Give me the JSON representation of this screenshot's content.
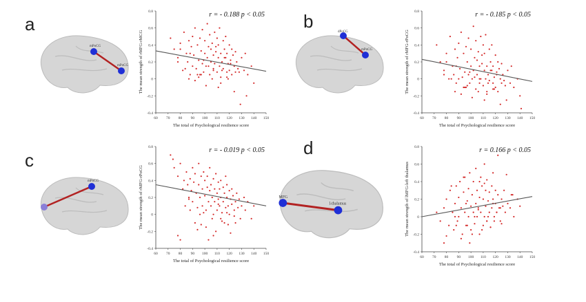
{
  "colors": {
    "point": "#d42a2a",
    "fit": "#555555",
    "node": "#1f2fd6",
    "edge": "#b22222",
    "brain": "#d6d6d6"
  },
  "panels": [
    {
      "letter": "a",
      "node1": "mPoCG",
      "node2": "mPoCG"
    },
    {
      "letter": "b",
      "node1": "dPoCG",
      "node2": "mPoCG"
    },
    {
      "letter": "c",
      "node1": "",
      "node2": "mPoCG"
    },
    {
      "letter": "d",
      "node1": "MFG",
      "node2": "l-thalamus"
    }
  ],
  "chart_data": [
    {
      "type": "scatter",
      "annotation": {
        "r": "r = - 0.188",
        "p": "p < 0.05"
      },
      "xlabel": "The total of Psychological resilience score",
      "ylabel": "The mean strength of rMFG-rMCG",
      "xlim": [
        60,
        150
      ],
      "ylim": [
        -0.4,
        0.8
      ],
      "xticks": [
        60,
        70,
        80,
        90,
        100,
        110,
        120,
        130,
        140,
        150
      ],
      "yticks": [
        -0.4,
        -0.2,
        0,
        0.2,
        0.4,
        0.6,
        0.8
      ],
      "fit": {
        "x": [
          60,
          150
        ],
        "y": [
          0.33,
          0.09
        ]
      },
      "grid": false,
      "x": [
        72,
        75,
        78,
        80,
        82,
        83,
        85,
        86,
        87,
        88,
        89,
        90,
        90,
        91,
        92,
        93,
        94,
        95,
        95,
        96,
        97,
        98,
        98,
        99,
        100,
        100,
        101,
        102,
        102,
        103,
        104,
        104,
        105,
        105,
        106,
        107,
        107,
        108,
        108,
        109,
        110,
        110,
        111,
        111,
        112,
        112,
        113,
        113,
        114,
        115,
        115,
        116,
        117,
        117,
        118,
        118,
        119,
        120,
        120,
        121,
        122,
        122,
        123,
        124,
        125,
        126,
        127,
        128,
        130,
        132,
        133,
        135,
        138,
        140,
        78,
        84,
        92,
        96,
        101,
        106,
        109,
        114,
        119,
        124,
        88,
        94,
        99,
        103,
        111,
        116,
        121,
        129,
        80,
        87,
        97,
        107,
        113,
        118,
        125,
        134
      ],
      "y": [
        0.48,
        0.35,
        0.25,
        0.42,
        0.1,
        0.55,
        0.3,
        0.2,
        0.45,
        0.05,
        0.38,
        0.15,
        0.5,
        0.28,
        0.6,
        0.12,
        0.4,
        0.22,
        0.02,
        0.48,
        0.33,
        0.18,
        0.58,
        0.08,
        0.3,
        0.45,
        0.15,
        0.65,
        0.25,
        0.38,
        0.05,
        0.52,
        0.2,
        0.35,
        0.42,
        0.1,
        0.28,
        0.55,
        0.18,
        0.32,
        0.48,
        0.08,
        0.25,
        0.4,
        0.15,
        0.6,
        0.3,
        0.02,
        0.2,
        0.45,
        0.12,
        0.35,
        0.25,
        0.5,
        0.08,
        0.3,
        0.18,
        0.4,
        0.1,
        0.22,
        0.35,
        0.05,
        0.28,
        0.15,
        0.32,
        0.2,
        0.12,
        0.08,
        0.25,
        0.1,
        0.3,
        0.05,
        0.15,
        -0.05,
        0.2,
        0.12,
        -0.02,
        0.05,
        -0.08,
        0.0,
        0.38,
        0.1,
        0.0,
        -0.15,
        0.3,
        0.05,
        0.22,
        0.15,
        -0.1,
        0.25,
        0.18,
        -0.3,
        0.35,
        0.0,
        0.05,
        0.12,
        -0.05,
        0.02,
        0.08,
        -0.2
      ]
    },
    {
      "type": "scatter",
      "annotation": {
        "r": "r = - 0.185",
        "p": "p < 0.05"
      },
      "xlabel": "The total of Psychological resilience score",
      "ylabel": "The mean strength of rMFG-rPoCG",
      "xlim": [
        60,
        150
      ],
      "ylim": [
        -0.4,
        0.8
      ],
      "xticks": [
        60,
        70,
        80,
        90,
        100,
        110,
        120,
        130,
        140,
        150
      ],
      "yticks": [
        -0.4,
        -0.2,
        0,
        0.2,
        0.4,
        0.6,
        0.8
      ],
      "fit": {
        "x": [
          60,
          150
        ],
        "y": [
          0.23,
          -0.03
        ]
      },
      "grid": false,
      "x": [
        72,
        75,
        78,
        80,
        82,
        83,
        85,
        86,
        87,
        88,
        89,
        90,
        90,
        91,
        92,
        93,
        94,
        95,
        95,
        96,
        97,
        98,
        98,
        99,
        100,
        100,
        101,
        102,
        102,
        103,
        104,
        104,
        105,
        105,
        106,
        107,
        107,
        108,
        108,
        109,
        110,
        110,
        111,
        111,
        112,
        112,
        113,
        113,
        114,
        115,
        115,
        116,
        117,
        117,
        118,
        118,
        119,
        120,
        120,
        121,
        122,
        122,
        123,
        124,
        125,
        126,
        127,
        128,
        130,
        132,
        133,
        135,
        138,
        140,
        78,
        84,
        92,
        96,
        101,
        106,
        109,
        114,
        119,
        124,
        88,
        94,
        99,
        103,
        111,
        116,
        121,
        129,
        80,
        87,
        97,
        107,
        113,
        118,
        125,
        141
      ],
      "y": [
        0.4,
        0.2,
        0.1,
        0.3,
        0.0,
        0.5,
        0.15,
        0.05,
        0.35,
        -0.05,
        0.25,
        0.0,
        0.42,
        0.12,
        0.55,
        0.02,
        0.3,
        0.08,
        -0.1,
        0.38,
        0.2,
        0.05,
        0.48,
        -0.05,
        0.15,
        0.35,
        0.0,
        0.62,
        0.1,
        0.25,
        -0.12,
        0.45,
        0.05,
        0.22,
        0.32,
        -0.05,
        0.15,
        0.5,
        0.0,
        0.18,
        0.4,
        -0.08,
        0.1,
        0.3,
        0.0,
        0.52,
        0.15,
        -0.15,
        0.05,
        0.35,
        -0.02,
        0.2,
        0.1,
        0.4,
        -0.05,
        0.15,
        0.02,
        0.28,
        -0.1,
        0.08,
        0.2,
        -0.15,
        0.12,
        0.0,
        0.18,
        0.05,
        -0.02,
        -0.08,
        0.1,
        -0.05,
        0.15,
        -0.1,
        0.0,
        -0.2,
        0.05,
        0.0,
        -0.18,
        -0.1,
        -0.22,
        -0.15,
        0.28,
        -0.05,
        -0.12,
        -0.3,
        0.15,
        -0.1,
        0.08,
        0.02,
        -0.25,
        0.1,
        0.05,
        -0.25,
        0.2,
        -0.15,
        -0.08,
        0.0,
        -0.18,
        -0.12,
        -0.05,
        -0.35
      ]
    },
    {
      "type": "scatter",
      "annotation": {
        "r": "r = - 0.019",
        "p": "p < 0.05"
      },
      "xlabel": "The total of Psychological resilience score",
      "ylabel": "The mean strength of rMFG-rPoCG",
      "xlim": [
        60,
        150
      ],
      "ylim": [
        -0.4,
        0.8
      ],
      "xticks": [
        60,
        70,
        80,
        90,
        100,
        110,
        120,
        130,
        140,
        150
      ],
      "yticks": [
        -0.4,
        -0.2,
        0,
        0.2,
        0.4,
        0.6,
        0.8
      ],
      "fit": {
        "x": [
          60,
          150
        ],
        "y": [
          0.35,
          0.1
        ]
      },
      "grid": false,
      "x": [
        72,
        75,
        78,
        80,
        82,
        83,
        85,
        86,
        87,
        88,
        89,
        90,
        90,
        91,
        92,
        93,
        94,
        95,
        95,
        96,
        97,
        98,
        98,
        99,
        100,
        100,
        101,
        102,
        102,
        103,
        104,
        104,
        105,
        105,
        106,
        107,
        107,
        108,
        108,
        109,
        110,
        110,
        111,
        111,
        112,
        112,
        113,
        113,
        114,
        115,
        115,
        116,
        117,
        117,
        118,
        118,
        119,
        120,
        120,
        121,
        122,
        122,
        123,
        124,
        125,
        126,
        127,
        128,
        130,
        132,
        133,
        135,
        138,
        140,
        74,
        78,
        84,
        92,
        96,
        101,
        106,
        109,
        114,
        119,
        124,
        88,
        94,
        99,
        103,
        111,
        116,
        121,
        129,
        80,
        87,
        97,
        107,
        113,
        118,
        125
      ],
      "y": [
        0.7,
        0.55,
        0.45,
        0.6,
        0.3,
        0.4,
        0.5,
        0.35,
        0.2,
        0.42,
        0.28,
        0.55,
        0.15,
        0.38,
        0.48,
        0.25,
        0.08,
        0.35,
        0.6,
        0.2,
        0.45,
        0.3,
        0.1,
        0.5,
        0.22,
        0.4,
        0.05,
        0.32,
        0.45,
        0.15,
        0.28,
        0.55,
        0.1,
        0.35,
        0.2,
        0.42,
        0.0,
        0.3,
        0.15,
        0.48,
        0.25,
        0.05,
        0.38,
        0.18,
        0.3,
        0.1,
        0.4,
        0.2,
        0.02,
        0.32,
        0.15,
        0.25,
        0.45,
        0.08,
        0.2,
        0.35,
        0.1,
        0.28,
        0.0,
        0.18,
        0.3,
        0.12,
        0.22,
        0.05,
        0.15,
        0.25,
        0.08,
        0.18,
        0.1,
        0.2,
        0.05,
        0.15,
        -0.05,
        0.1,
        0.65,
        -0.25,
        0.1,
        -0.1,
        0.0,
        -0.15,
        -0.05,
        -0.2,
        -0.08,
        -0.12,
        -0.02,
        0.05,
        -0.18,
        0.02,
        -0.3,
        0.12,
        -0.1,
        -0.22,
        -0.05,
        -0.3,
        0.18,
        -0.12,
        -0.25,
        -0.05,
        0.02,
        -0.1
      ]
    },
    {
      "type": "scatter",
      "annotation": {
        "r": "r = 0.166",
        "p": "p < 0.05"
      },
      "xlabel": "The total of Psychological resilience score",
      "ylabel": "The mean strength of lMFG-left thalamus",
      "xlim": [
        60,
        150
      ],
      "ylim": [
        -0.4,
        0.8
      ],
      "xticks": [
        60,
        70,
        80,
        90,
        100,
        110,
        120,
        130,
        140,
        150
      ],
      "yticks": [
        -0.4,
        -0.2,
        0,
        0.2,
        0.4,
        0.6,
        0.8
      ],
      "fit": {
        "x": [
          60,
          150
        ],
        "y": [
          0.0,
          0.23
        ]
      },
      "grid": false,
      "x": [
        72,
        75,
        78,
        80,
        82,
        83,
        85,
        86,
        87,
        88,
        89,
        90,
        90,
        91,
        92,
        93,
        94,
        95,
        95,
        96,
        97,
        98,
        98,
        99,
        100,
        100,
        101,
        102,
        102,
        103,
        104,
        104,
        105,
        105,
        106,
        107,
        107,
        108,
        108,
        109,
        110,
        110,
        111,
        111,
        112,
        112,
        113,
        113,
        114,
        115,
        115,
        116,
        117,
        117,
        118,
        118,
        119,
        120,
        120,
        121,
        122,
        122,
        123,
        124,
        125,
        126,
        127,
        128,
        130,
        132,
        133,
        135,
        138,
        140,
        78,
        84,
        92,
        96,
        101,
        106,
        109,
        114,
        119,
        124,
        88,
        94,
        99,
        103,
        111,
        116,
        121,
        129,
        80,
        87,
        97,
        107,
        113,
        118,
        125,
        134
      ],
      "y": [
        0.05,
        -0.05,
        0.1,
        0.2,
        -0.1,
        0.3,
        0.05,
        -0.15,
        0.15,
        0.35,
        -0.05,
        0.22,
        0.0,
        0.4,
        0.1,
        -0.2,
        0.28,
        0.05,
        0.45,
        -0.1,
        0.18,
        0.32,
        0.0,
        0.5,
        0.12,
        -0.15,
        0.25,
        0.05,
        0.4,
        -0.08,
        0.15,
        0.55,
        0.0,
        0.3,
        0.1,
        -0.2,
        0.22,
        0.45,
        0.05,
        0.35,
        -0.1,
        0.2,
        0.6,
        0.0,
        0.3,
        0.12,
        -0.05,
        0.42,
        0.18,
        0.05,
        0.28,
        -0.12,
        0.35,
        0.1,
        0.2,
        0.5,
        0.0,
        0.15,
        0.3,
        0.05,
        0.25,
        0.7,
        0.1,
        -0.05,
        0.2,
        0.12,
        0.3,
        0.05,
        0.15,
        0.1,
        0.25,
        0.0,
        0.2,
        0.12,
        -0.3,
        0.35,
        -0.25,
        0.15,
        -0.2,
        0.08,
        -0.15,
        0.0,
        -0.05,
        0.1,
        -0.1,
        0.45,
        -0.3,
        0.0,
        0.38,
        -0.12,
        0.05,
        0.48,
        -0.22,
        0.0,
        -0.1,
        0.4,
        -0.05,
        0.15,
        -0.08,
        0.25
      ]
    }
  ]
}
